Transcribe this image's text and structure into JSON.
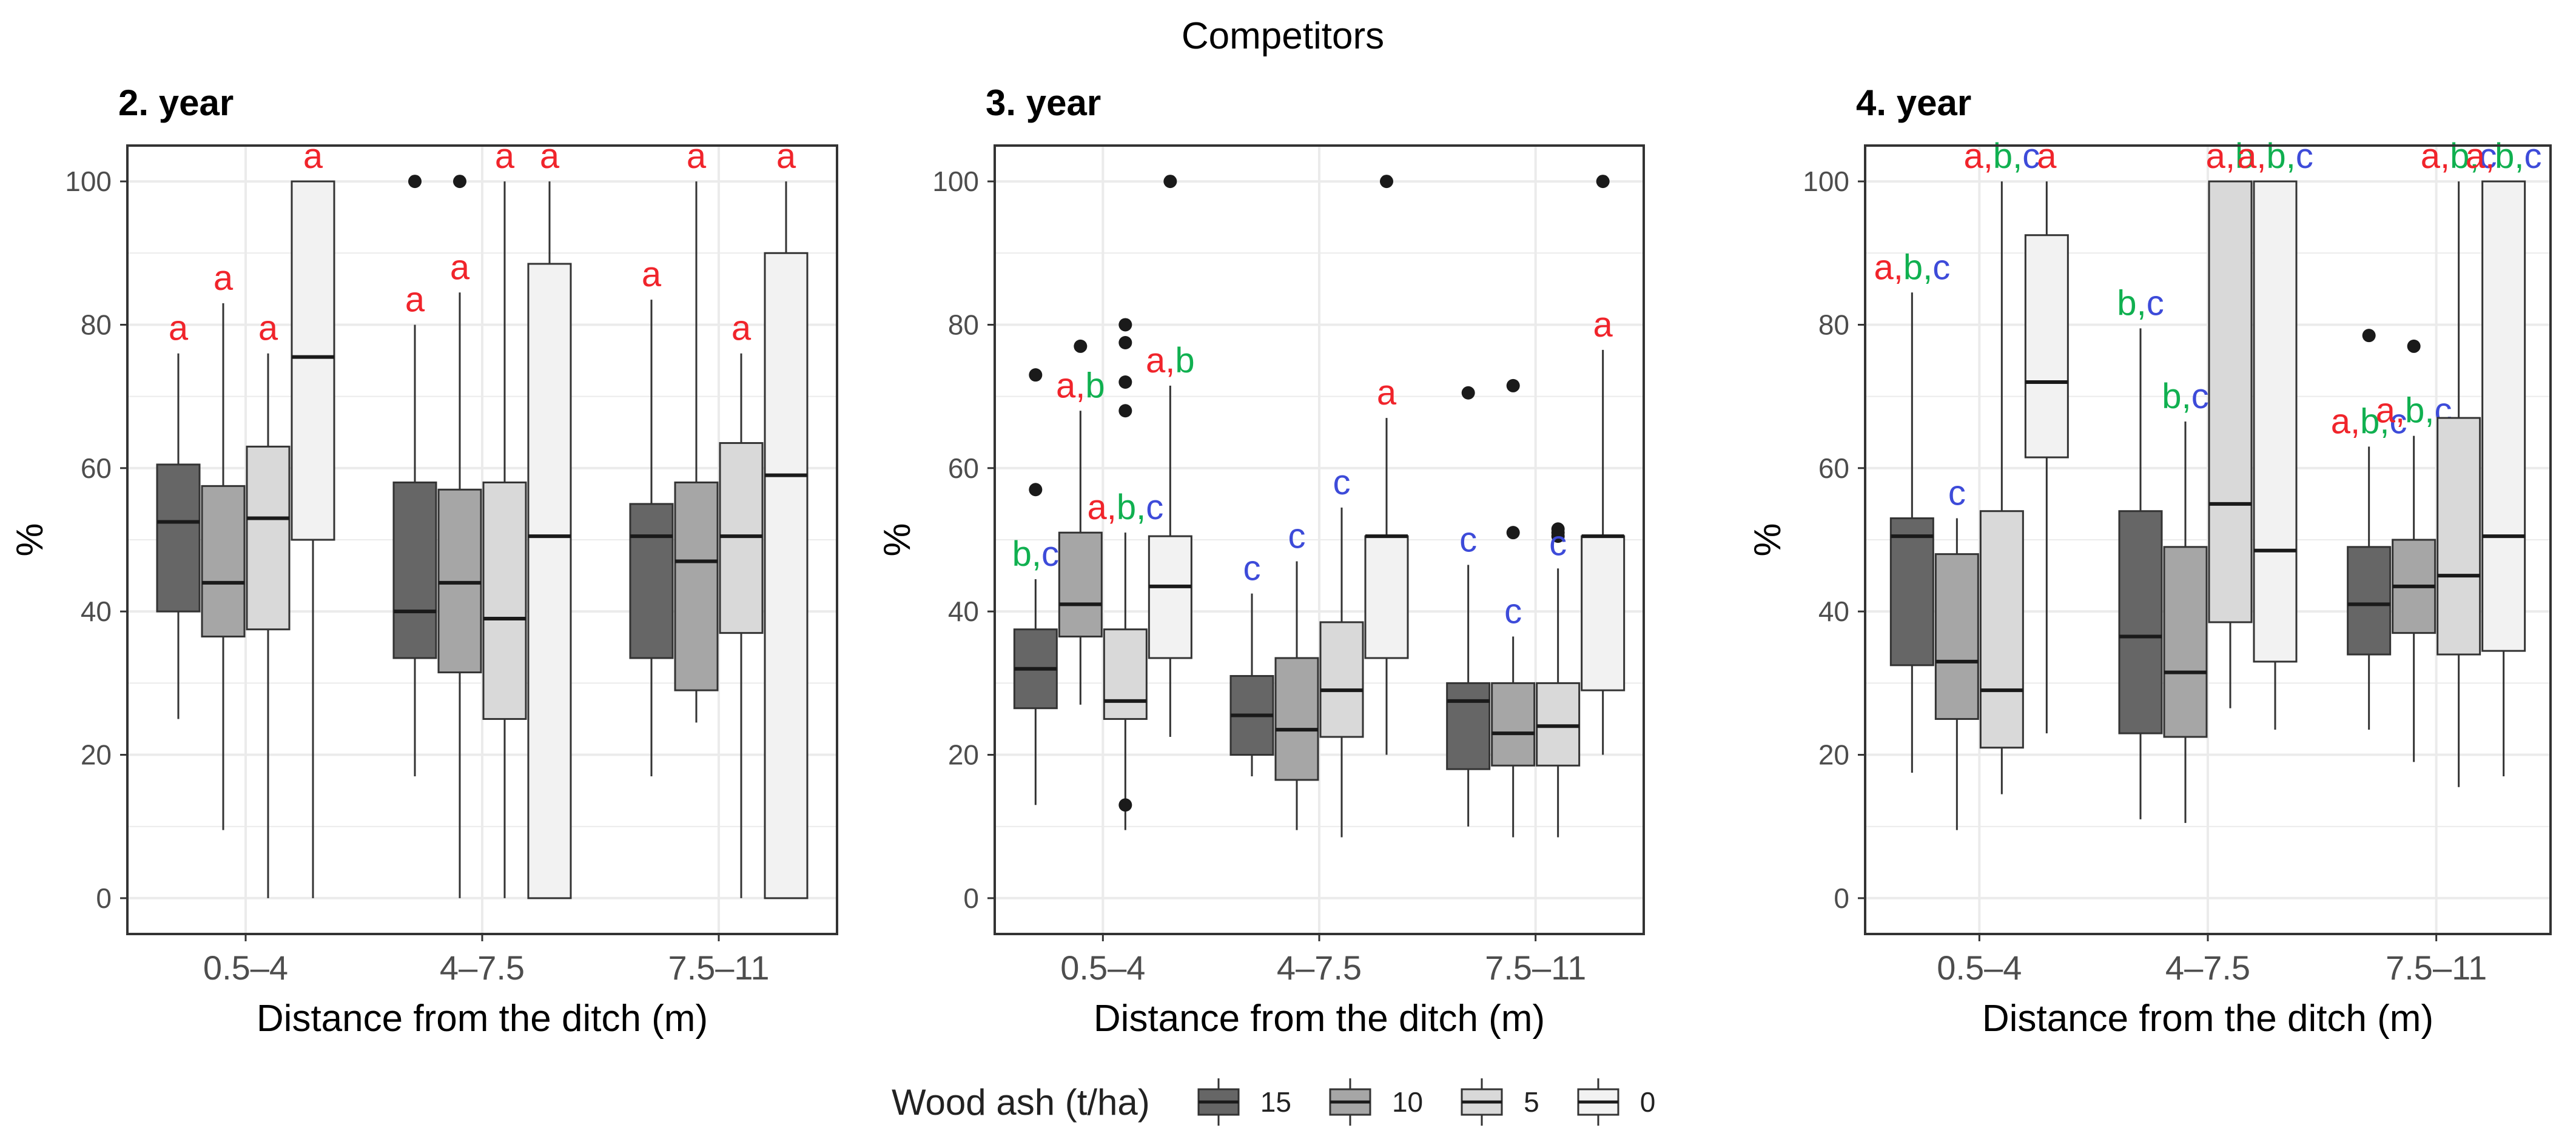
{
  "figure": {
    "title": "Competitors",
    "colors": {
      "15": "#666666",
      "10": "#a6a6a6",
      "5": "#d9d9d9",
      "0": "#f2f2f2",
      "letter_a": "#f0242b",
      "letter_b": "#10b050",
      "letter_c": "#3d4bd9",
      "grid": "#ebebeb",
      "axis_text": "#4d4d4d"
    }
  },
  "legend": {
    "title": "Wood ash (t/ha)",
    "items": [
      {
        "label": "15",
        "color": "#666666"
      },
      {
        "label": "10",
        "color": "#a6a6a6"
      },
      {
        "label": "5",
        "color": "#d9d9d9"
      },
      {
        "label": "0",
        "color": "#f2f2f2"
      }
    ]
  },
  "chart_data": [
    {
      "type": "boxplot",
      "panel_title": "2. year",
      "xlabel": "Distance from the ditch (m)",
      "ylabel": "%",
      "ylim": [
        -5,
        105
      ],
      "yticks": [
        0,
        20,
        40,
        60,
        80,
        100
      ],
      "categories": [
        "0.5–4",
        "4–7.5",
        "7.5–11"
      ],
      "series": [
        {
          "name": "15",
          "boxes": [
            {
              "min": 25,
              "q1": 40,
              "median": 52.5,
              "q3": 60.5,
              "max": 76,
              "outliers": [],
              "letters": [
                "a"
              ]
            },
            {
              "min": 17,
              "q1": 33.5,
              "median": 40,
              "q3": 58,
              "max": 80,
              "outliers": [
                100
              ],
              "letters": [
                "a"
              ]
            },
            {
              "min": 17,
              "q1": 33.5,
              "median": 50.5,
              "q3": 55,
              "max": 83.5,
              "outliers": [],
              "letters": [
                "a"
              ]
            }
          ]
        },
        {
          "name": "10",
          "boxes": [
            {
              "min": 9.5,
              "q1": 36.5,
              "median": 44,
              "q3": 57.5,
              "max": 83,
              "outliers": [],
              "letters": [
                "a"
              ]
            },
            {
              "min": 0,
              "q1": 31.5,
              "median": 44,
              "q3": 57,
              "max": 84.5,
              "outliers": [
                100
              ],
              "letters": [
                "a"
              ]
            },
            {
              "min": 24.5,
              "q1": 29,
              "median": 47,
              "q3": 58,
              "max": 100,
              "outliers": [],
              "letters": [
                "a"
              ]
            }
          ]
        },
        {
          "name": "5",
          "boxes": [
            {
              "min": 0,
              "q1": 37.5,
              "median": 53,
              "q3": 63,
              "max": 76,
              "outliers": [],
              "letters": [
                "a"
              ]
            },
            {
              "min": 0,
              "q1": 25,
              "median": 39,
              "q3": 58,
              "max": 100,
              "outliers": [],
              "letters": [
                "a"
              ]
            },
            {
              "min": 0,
              "q1": 37,
              "median": 50.5,
              "q3": 63.5,
              "max": 76,
              "outliers": [],
              "letters": [
                "a"
              ]
            }
          ]
        },
        {
          "name": "0",
          "boxes": [
            {
              "min": 0,
              "q1": 50,
              "median": 75.5,
              "q3": 100,
              "max": 100,
              "outliers": [],
              "letters": [
                "a"
              ]
            },
            {
              "min": 0,
              "q1": 0,
              "median": 50.5,
              "q3": 88.5,
              "max": 100,
              "outliers": [],
              "letters": [
                "a"
              ]
            },
            {
              "min": 0,
              "q1": 0,
              "median": 59,
              "q3": 90,
              "max": 100,
              "outliers": [],
              "letters": [
                "a"
              ]
            }
          ]
        }
      ]
    },
    {
      "type": "boxplot",
      "panel_title": "3. year",
      "xlabel": "Distance from the ditch (m)",
      "ylabel": "%",
      "ylim": [
        -5,
        105
      ],
      "yticks": [
        0,
        20,
        40,
        60,
        80,
        100
      ],
      "categories": [
        "0.5–4",
        "4–7.5",
        "7.5–11"
      ],
      "series": [
        {
          "name": "15",
          "boxes": [
            {
              "min": 13,
              "q1": 26.5,
              "median": 32,
              "q3": 37.5,
              "max": 44.5,
              "outliers": [
                57,
                73
              ],
              "letters": [
                "b",
                "c"
              ]
            },
            {
              "min": 17,
              "q1": 20,
              "median": 25.5,
              "q3": 31,
              "max": 42.5,
              "outliers": [],
              "letters": [
                "c"
              ]
            },
            {
              "min": 10,
              "q1": 18,
              "median": 27.5,
              "q3": 30,
              "max": 46.5,
              "outliers": [
                70.5
              ],
              "letters": [
                "c"
              ]
            }
          ]
        },
        {
          "name": "10",
          "boxes": [
            {
              "min": 27,
              "q1": 36.5,
              "median": 41,
              "q3": 51,
              "max": 68,
              "outliers": [
                77
              ],
              "letters": [
                "a",
                "b"
              ]
            },
            {
              "min": 9.5,
              "q1": 16.5,
              "median": 23.5,
              "q3": 33.5,
              "max": 47,
              "outliers": [],
              "letters": [
                "c"
              ]
            },
            {
              "min": 8.5,
              "q1": 18.5,
              "median": 23,
              "q3": 30,
              "max": 36.5,
              "outliers": [
                51,
                71.5
              ],
              "letters": [
                "c"
              ]
            }
          ]
        },
        {
          "name": "5",
          "boxes": [
            {
              "min": 9.5,
              "q1": 25,
              "median": 27.5,
              "q3": 37.5,
              "max": 51,
              "outliers": [
                13,
                68,
                72,
                77.5,
                80
              ],
              "letters": [
                "a",
                "b",
                "c"
              ]
            },
            {
              "min": 8.5,
              "q1": 22.5,
              "median": 29,
              "q3": 38.5,
              "max": 54.5,
              "outliers": [],
              "letters": [
                "c"
              ]
            },
            {
              "min": 8.5,
              "q1": 18.5,
              "median": 24,
              "q3": 30,
              "max": 46,
              "outliers": [
                50.5,
                51,
                51.5
              ],
              "letters": [
                "c"
              ]
            }
          ]
        },
        {
          "name": "0",
          "boxes": [
            {
              "min": 22.5,
              "q1": 33.5,
              "median": 43.5,
              "q3": 50.5,
              "max": 71.5,
              "outliers": [
                100
              ],
              "letters": [
                "a",
                "b"
              ]
            },
            {
              "min": 20,
              "q1": 33.5,
              "median": 50.5,
              "q3": 50.5,
              "max": 67,
              "outliers": [
                100
              ],
              "letters": [
                "a"
              ]
            },
            {
              "min": 20,
              "q1": 29,
              "median": 50.5,
              "q3": 50.5,
              "max": 76.5,
              "outliers": [
                100
              ],
              "letters": [
                "a"
              ]
            }
          ]
        }
      ]
    },
    {
      "type": "boxplot",
      "panel_title": "4. year",
      "xlabel": "Distance from the ditch (m)",
      "ylabel": "%",
      "ylim": [
        -5,
        105
      ],
      "yticks": [
        0,
        20,
        40,
        60,
        80,
        100
      ],
      "categories": [
        "0.5–4",
        "4–7.5",
        "7.5–11"
      ],
      "series": [
        {
          "name": "15",
          "boxes": [
            {
              "min": 17.5,
              "q1": 32.5,
              "median": 50.5,
              "q3": 53,
              "max": 84.5,
              "outliers": [],
              "letters": [
                "a",
                "b",
                "c"
              ]
            },
            {
              "min": 11,
              "q1": 23,
              "median": 36.5,
              "q3": 54,
              "max": 79.5,
              "outliers": [],
              "letters": [
                "b",
                "c"
              ]
            },
            {
              "min": 23.5,
              "q1": 34,
              "median": 41,
              "q3": 49,
              "max": 63,
              "outliers": [
                78.5
              ],
              "letters": [
                "a",
                "b",
                "c"
              ]
            }
          ]
        },
        {
          "name": "10",
          "boxes": [
            {
              "min": 9.5,
              "q1": 25,
              "median": 33,
              "q3": 48,
              "max": 53,
              "outliers": [],
              "letters": [
                "c"
              ]
            },
            {
              "min": 10.5,
              "q1": 22.5,
              "median": 31.5,
              "q3": 49,
              "max": 66.5,
              "outliers": [],
              "letters": [
                "b",
                "c"
              ]
            },
            {
              "min": 19,
              "q1": 37,
              "median": 43.5,
              "q3": 50,
              "max": 64.5,
              "outliers": [
                77
              ],
              "letters": [
                "a",
                "b",
                "c"
              ]
            }
          ]
        },
        {
          "name": "5",
          "boxes": [
            {
              "min": 14.5,
              "q1": 21,
              "median": 29,
              "q3": 54,
              "max": 100,
              "outliers": [],
              "letters": [
                "a",
                "b",
                "c"
              ]
            },
            {
              "min": 26.5,
              "q1": 38.5,
              "median": 55,
              "q3": 100,
              "max": 100,
              "outliers": [],
              "letters": [
                "a",
                "b"
              ]
            },
            {
              "min": 15.5,
              "q1": 34,
              "median": 45,
              "q3": 67,
              "max": 100,
              "outliers": [],
              "letters": [
                "a",
                "b",
                "c"
              ]
            }
          ]
        },
        {
          "name": "0",
          "boxes": [
            {
              "min": 23,
              "q1": 61.5,
              "median": 72,
              "q3": 92.5,
              "max": 100,
              "outliers": [],
              "letters": [
                "a"
              ]
            },
            {
              "min": 23.5,
              "q1": 33,
              "median": 48.5,
              "q3": 100,
              "max": 100,
              "outliers": [],
              "letters": [
                "a",
                "b",
                "c"
              ]
            },
            {
              "min": 17,
              "q1": 34.5,
              "median": 50.5,
              "q3": 100,
              "max": 100,
              "outliers": [],
              "letters": [
                "a",
                "b",
                "c"
              ]
            }
          ]
        }
      ]
    }
  ]
}
